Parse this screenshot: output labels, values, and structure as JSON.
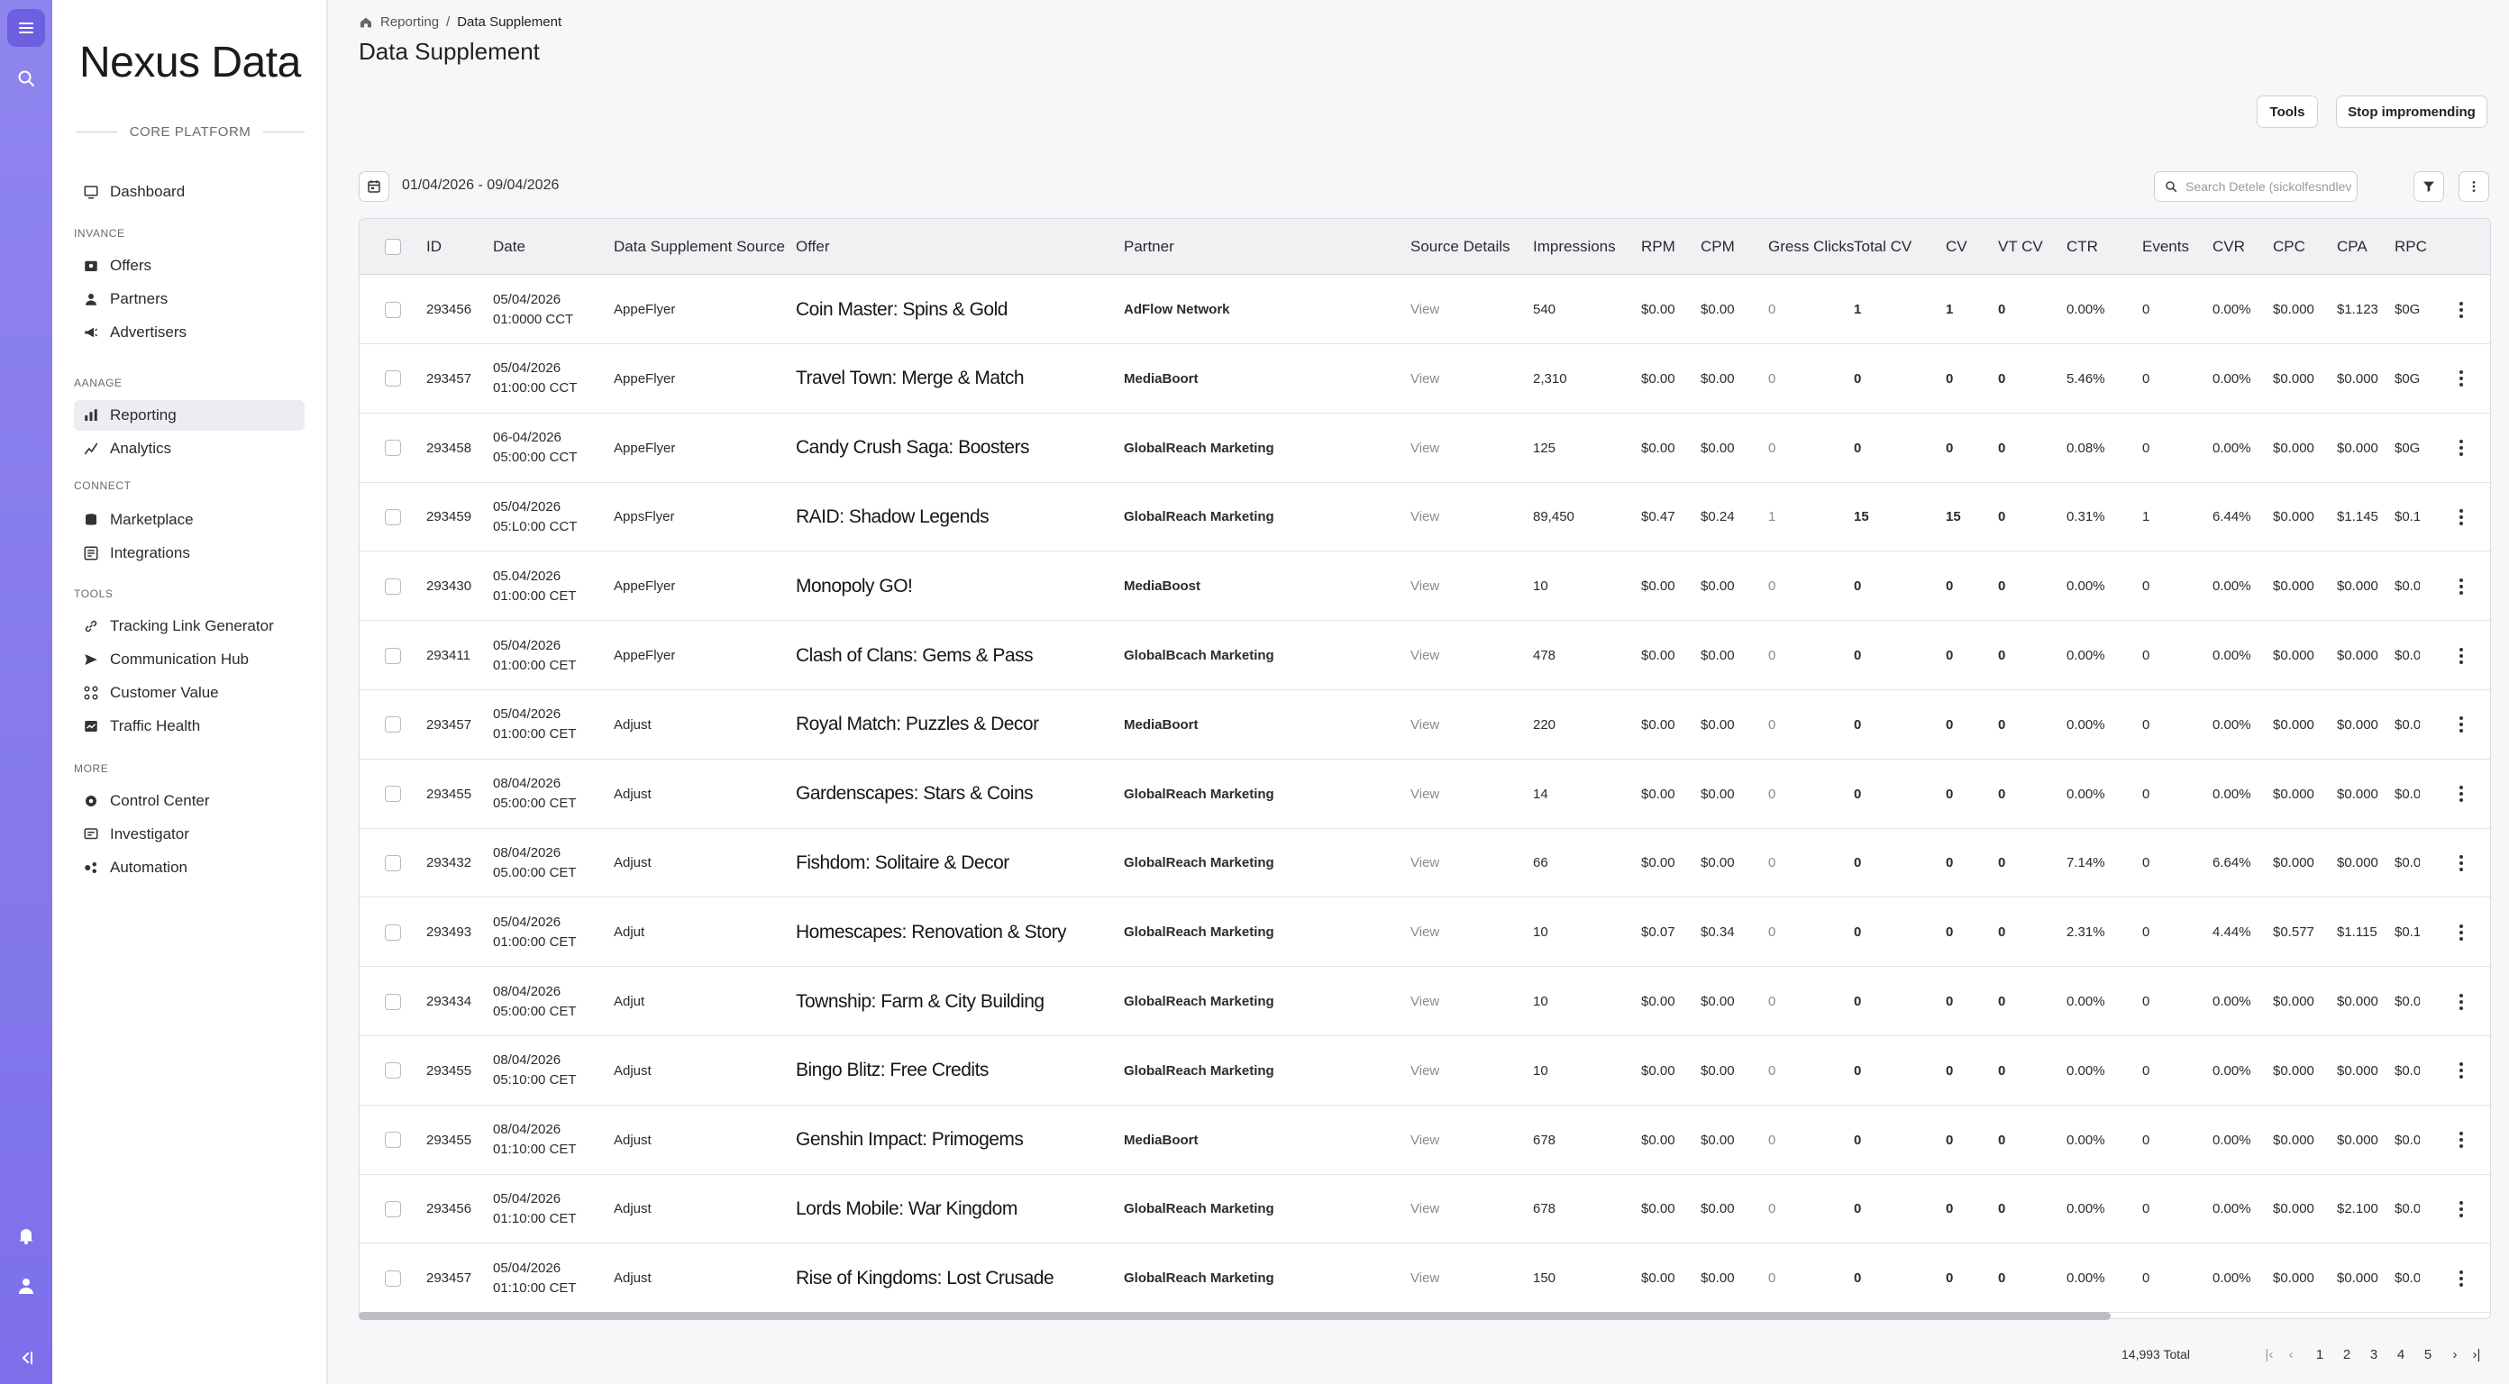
{
  "app": {
    "brand": "Nexus Data",
    "section_label": "CORE PLATFORM"
  },
  "rail": {
    "icons": [
      "menu-icon",
      "search-icon",
      "bell-icon",
      "user-icon",
      "collapse-icon"
    ]
  },
  "sidebar": {
    "groups": [
      {
        "label": "",
        "items": [
          {
            "label": "Dashboard",
            "icon": "dashboard-icon",
            "active": false
          }
        ]
      },
      {
        "label": "INVANCE",
        "items": [
          {
            "label": "Offers",
            "icon": "offers-icon",
            "active": false
          },
          {
            "label": "Partners",
            "icon": "partners-icon",
            "active": false
          },
          {
            "label": "Advertisers",
            "icon": "advertisers-icon",
            "active": false
          }
        ]
      },
      {
        "label": "AANAGE",
        "items": [
          {
            "label": "Reporting",
            "icon": "reporting-icon",
            "active": true
          },
          {
            "label": "Analytics",
            "icon": "analytics-icon",
            "active": false
          }
        ]
      },
      {
        "label": "CONNECT",
        "items": [
          {
            "label": "Marketplace",
            "icon": "marketplace-icon",
            "active": false
          },
          {
            "label": "Integrations",
            "icon": "integrations-icon",
            "active": false
          }
        ]
      },
      {
        "label": "TOOLS",
        "items": [
          {
            "label": "Tracking Link Generator",
            "icon": "link-icon",
            "active": false
          },
          {
            "label": "Communication Hub",
            "icon": "send-icon",
            "active": false
          },
          {
            "label": "Customer Value",
            "icon": "customer-value-icon",
            "active": false
          },
          {
            "label": "Traffic Health",
            "icon": "traffic-icon",
            "active": false
          }
        ]
      },
      {
        "label": "MORE",
        "items": [
          {
            "label": "Control Center",
            "icon": "gear-icon",
            "active": false
          },
          {
            "label": "Investigator",
            "icon": "investigator-icon",
            "active": false
          },
          {
            "label": "Automation",
            "icon": "automation-icon",
            "active": false
          }
        ]
      }
    ]
  },
  "header": {
    "breadcrumb": [
      "Reporting",
      "Data Supplement"
    ],
    "title": "Data Supplement",
    "tools_label": "Tools",
    "stop_label": "Stop impromending"
  },
  "filters": {
    "date_range": "01/04/2026 - 09/04/2026",
    "search_placeholder": "Search Detele (sickolfesndlevl"
  },
  "table": {
    "columns": [
      "ID",
      "Date",
      "Data Supplement Source",
      "Offer",
      "Partner",
      "Source Details",
      "Impressions",
      "RPM",
      "CPM",
      "Gress Clicks",
      "Total CV",
      "CV",
      "VT CV",
      "CTR",
      "Events",
      "CVR",
      "CPC",
      "CPA",
      "RPC"
    ],
    "rows": [
      {
        "id": "293456",
        "date": "05/04/2026",
        "time": "01:0000 CCT",
        "source": "AppeFlyer",
        "offer": "Coin Master: Spins & Gold",
        "partner": "AdFlow Network",
        "details": "View",
        "impressions": "540",
        "rpm": "$0.00",
        "cpm": "$0.00",
        "clicks": "0",
        "total_cv": "1",
        "cv": "1",
        "vt_cv": "0",
        "ctr": "0.00%",
        "events": "0",
        "cvr": "0.00%",
        "cpc": "$0.000",
        "cpa": "$1.123",
        "rpc": "$0G"
      },
      {
        "id": "293457",
        "date": "05/04/2026",
        "time": "01:00:00 CCT",
        "source": "AppeFlyer",
        "offer": "Travel Town: Merge & Match",
        "partner": "MediaBoort",
        "details": "View",
        "impressions": "2,310",
        "rpm": "$0.00",
        "cpm": "$0.00",
        "clicks": "0",
        "total_cv": "0",
        "cv": "0",
        "vt_cv": "0",
        "ctr": "5.46%",
        "events": "0",
        "cvr": "0.00%",
        "cpc": "$0.000",
        "cpa": "$0.000",
        "rpc": "$0G"
      },
      {
        "id": "293458",
        "date": "06-04/2026",
        "time": "05:00:00 CCT",
        "source": "AppeFlyer",
        "offer": "Candy Crush Saga: Boosters",
        "partner": "GlobalReach Marketing",
        "details": "View",
        "impressions": "125",
        "rpm": "$0.00",
        "cpm": "$0.00",
        "clicks": "0",
        "total_cv": "0",
        "cv": "0",
        "vt_cv": "0",
        "ctr": "0.08%",
        "events": "0",
        "cvr": "0.00%",
        "cpc": "$0.000",
        "cpa": "$0.000",
        "rpc": "$0G"
      },
      {
        "id": "293459",
        "date": "05/04/2026",
        "time": "05:L0:00 CCT",
        "source": "AppsFlyer",
        "offer": "RAID: Shadow Legends",
        "partner": "GlobalReach Marketing",
        "details": "View",
        "impressions": "89,450",
        "rpm": "$0.47",
        "cpm": "$0.24",
        "clicks": "1",
        "total_cv": "15",
        "cv": "15",
        "vt_cv": "0",
        "ctr": "0.31%",
        "events": "1",
        "cvr": "6.44%",
        "cpc": "$0.000",
        "cpa": "$1.145",
        "rpc": "$0.1"
      },
      {
        "id": "293430",
        "date": "05.04/2026",
        "time": "01:00:00 CET",
        "source": "AppeFlyer",
        "offer": "Monopoly GO!",
        "partner": "MediaBoost",
        "details": "View",
        "impressions": "10",
        "rpm": "$0.00",
        "cpm": "$0.00",
        "clicks": "0",
        "total_cv": "0",
        "cv": "0",
        "vt_cv": "0",
        "ctr": "0.00%",
        "events": "0",
        "cvr": "0.00%",
        "cpc": "$0.000",
        "cpa": "$0.000",
        "rpc": "$0.0"
      },
      {
        "id": "293411",
        "date": "05/04/2026",
        "time": "01:00:00 CET",
        "source": "AppeFlyer",
        "offer": "Clash of Clans: Gems & Pass",
        "partner": "GlobalBcach Marketing",
        "details": "View",
        "impressions": "478",
        "rpm": "$0.00",
        "cpm": "$0.00",
        "clicks": "0",
        "total_cv": "0",
        "cv": "0",
        "vt_cv": "0",
        "ctr": "0.00%",
        "events": "0",
        "cvr": "0.00%",
        "cpc": "$0.000",
        "cpa": "$0.000",
        "rpc": "$0.0"
      },
      {
        "id": "293457",
        "date": "05/04/2026",
        "time": "01:00:00 CET",
        "source": "Adjust",
        "offer": "Royal Match: Puzzles & Decor",
        "partner": "MediaBoort",
        "details": "View",
        "impressions": "220",
        "rpm": "$0.00",
        "cpm": "$0.00",
        "clicks": "0",
        "total_cv": "0",
        "cv": "0",
        "vt_cv": "0",
        "ctr": "0.00%",
        "events": "0",
        "cvr": "0.00%",
        "cpc": "$0.000",
        "cpa": "$0.000",
        "rpc": "$0.0"
      },
      {
        "id": "293455",
        "date": "08/04/2026",
        "time": "05:00:00 CET",
        "source": "Adjust",
        "offer": "Gardenscapes: Stars & Coins",
        "partner": "GlobalReach Marketing",
        "details": "View",
        "impressions": "14",
        "rpm": "$0.00",
        "cpm": "$0.00",
        "clicks": "0",
        "total_cv": "0",
        "cv": "0",
        "vt_cv": "0",
        "ctr": "0.00%",
        "events": "0",
        "cvr": "0.00%",
        "cpc": "$0.000",
        "cpa": "$0.000",
        "rpc": "$0.0"
      },
      {
        "id": "293432",
        "date": "08/04/2026",
        "time": "05.00:00 CET",
        "source": "Adjust",
        "offer": "Fishdom: Solitaire & Decor",
        "partner": "GlobalReach Marketing",
        "details": "View",
        "impressions": "66",
        "rpm": "$0.00",
        "cpm": "$0.00",
        "clicks": "0",
        "total_cv": "0",
        "cv": "0",
        "vt_cv": "0",
        "ctr": "7.14%",
        "events": "0",
        "cvr": "6.64%",
        "cpc": "$0.000",
        "cpa": "$0.000",
        "rpc": "$0.0"
      },
      {
        "id": "293493",
        "date": "05/04/2026",
        "time": "01:00:00 CET",
        "source": "Adjut",
        "offer": "Homescapes: Renovation & Story",
        "partner": "GlobalReach Marketing",
        "details": "View",
        "impressions": "10",
        "rpm": "$0.07",
        "cpm": "$0.34",
        "clicks": "0",
        "total_cv": "0",
        "cv": "0",
        "vt_cv": "0",
        "ctr": "2.31%",
        "events": "0",
        "cvr": "4.44%",
        "cpc": "$0.577",
        "cpa": "$1.115",
        "rpc": "$0.1"
      },
      {
        "id": "293434",
        "date": "08/04/2026",
        "time": "05:00:00 CET",
        "source": "Adjut",
        "offer": "Township: Farm & City Building",
        "partner": "GlobalReach Marketing",
        "details": "View",
        "impressions": "10",
        "rpm": "$0.00",
        "cpm": "$0.00",
        "clicks": "0",
        "total_cv": "0",
        "cv": "0",
        "vt_cv": "0",
        "ctr": "0.00%",
        "events": "0",
        "cvr": "0.00%",
        "cpc": "$0.000",
        "cpa": "$0.000",
        "rpc": "$0.0"
      },
      {
        "id": "293455",
        "date": "08/04/2026",
        "time": "05:10:00 CET",
        "source": "Adjust",
        "offer": "Bingo Blitz: Free Credits",
        "partner": "GlobalReach Marketing",
        "details": "View",
        "impressions": "10",
        "rpm": "$0.00",
        "cpm": "$0.00",
        "clicks": "0",
        "total_cv": "0",
        "cv": "0",
        "vt_cv": "0",
        "ctr": "0.00%",
        "events": "0",
        "cvr": "0.00%",
        "cpc": "$0.000",
        "cpa": "$0.000",
        "rpc": "$0.0"
      },
      {
        "id": "293455",
        "date": "08/04/2026",
        "time": "01:10:00 CET",
        "source": "Adjust",
        "offer": "Genshin Impact: Primogems",
        "partner": "MediaBoort",
        "details": "View",
        "impressions": "678",
        "rpm": "$0.00",
        "cpm": "$0.00",
        "clicks": "0",
        "total_cv": "0",
        "cv": "0",
        "vt_cv": "0",
        "ctr": "0.00%",
        "events": "0",
        "cvr": "0.00%",
        "cpc": "$0.000",
        "cpa": "$0.000",
        "rpc": "$0.0"
      },
      {
        "id": "293456",
        "date": "05/04/2026",
        "time": "01:10:00 CET",
        "source": "Adjust",
        "offer": "Lords Mobile: War Kingdom",
        "partner": "GlobalReach Marketing",
        "details": "View",
        "impressions": "678",
        "rpm": "$0.00",
        "cpm": "$0.00",
        "clicks": "0",
        "total_cv": "0",
        "cv": "0",
        "vt_cv": "0",
        "ctr": "0.00%",
        "events": "0",
        "cvr": "0.00%",
        "cpc": "$0.000",
        "cpa": "$2.100",
        "rpc": "$0.0"
      },
      {
        "id": "293457",
        "date": "05/04/2026",
        "time": "01:10:00 CET",
        "source": "Adjust",
        "offer": "Rise of Kingdoms: Lost Crusade",
        "partner": "GlobalReach Marketing",
        "details": "View",
        "impressions": "150",
        "rpm": "$0.00",
        "cpm": "$0.00",
        "clicks": "0",
        "total_cv": "0",
        "cv": "0",
        "vt_cv": "0",
        "ctr": "0.00%",
        "events": "0",
        "cvr": "0.00%",
        "cpc": "$0.000",
        "cpa": "$0.000",
        "rpc": "$0.0"
      }
    ]
  },
  "pagination": {
    "total": "14,993 Total",
    "pages": [
      "1",
      "2",
      "3",
      "4",
      "5"
    ]
  }
}
